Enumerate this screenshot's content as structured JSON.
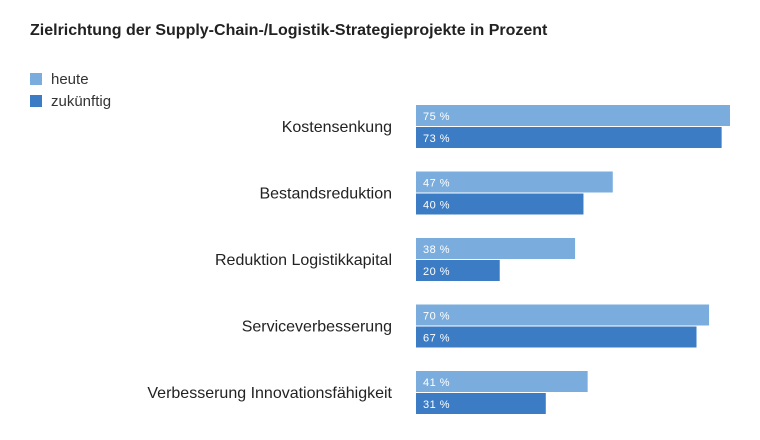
{
  "chart_data": {
    "type": "bar",
    "orientation": "horizontal",
    "title": "Zielrichtung der Supply-Chain-/Logistik-Strategieprojekte in Prozent",
    "categories": [
      "Kostensenkung",
      "Bestandsreduktion",
      "Reduktion Logistikkapital",
      "Serviceverbesserung",
      "Verbesserung Innovationsfähigkeit"
    ],
    "series": [
      {
        "name": "heute",
        "color": "#7aaddd",
        "values": [
          75,
          47,
          38,
          70,
          41
        ]
      },
      {
        "name": "zukünftig",
        "color": "#3b7cc4",
        "values": [
          73,
          40,
          20,
          67,
          31
        ]
      }
    ],
    "value_suffix": " %",
    "xlim": [
      0,
      75
    ],
    "grid": false,
    "legend_position": "top-left"
  }
}
